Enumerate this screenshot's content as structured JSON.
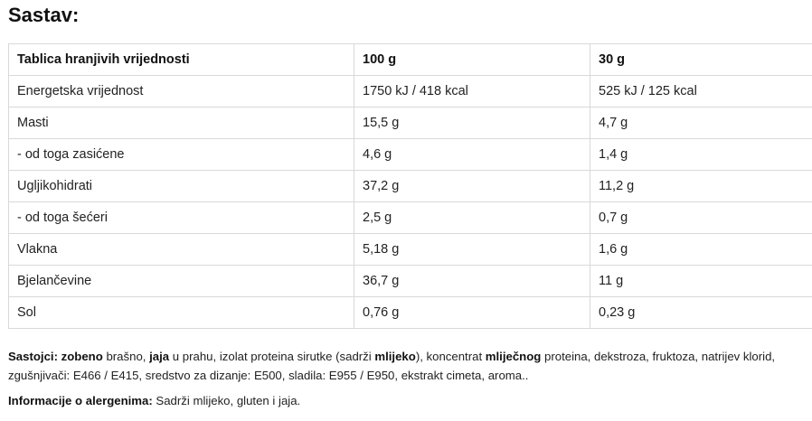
{
  "heading": "Sastav:",
  "table": {
    "headers": [
      "Tablica hranjivih vrijednosti",
      "100 g",
      "30 g"
    ],
    "rows": [
      [
        "Energetska vrijednost",
        "1750 kJ / 418 kcal",
        "525 kJ / 125 kcal"
      ],
      [
        "Masti",
        "15,5 g",
        "4,7 g"
      ],
      [
        "- od toga zasićene",
        "4,6 g",
        "1,4 g"
      ],
      [
        "Ugljikohidrati",
        "37,2 g",
        "11,2 g"
      ],
      [
        "- od toga šećeri",
        "2,5 g",
        "0,7 g"
      ],
      [
        "Vlakna",
        "5,18 g",
        "1,6 g"
      ],
      [
        "Bjelančevine",
        "36,7 g",
        "11 g"
      ],
      [
        "Sol",
        "0,76 g",
        "0,23 g"
      ]
    ]
  },
  "ingredients": {
    "label": "Sastojci:",
    "bold1": "zobeno",
    "text1": " brašno, ",
    "bold2": "jaja",
    "text2": " u prahu, izolat proteina sirutke (sadrži ",
    "bold3": "mlijeko",
    "text3": "), koncentrat ",
    "bold4": "mliječnog",
    "text4": " proteina, dekstroza, fruktoza, natrijev klorid, zgušnjivači: E466 / E415, sredstvo za dizanje: E500, sladila: E955 / E950, ekstrakt cimeta, aroma.."
  },
  "allergens": {
    "label": "Informacije o alergenima:",
    "text": " Sadrži mlijeko, gluten i jaja."
  }
}
